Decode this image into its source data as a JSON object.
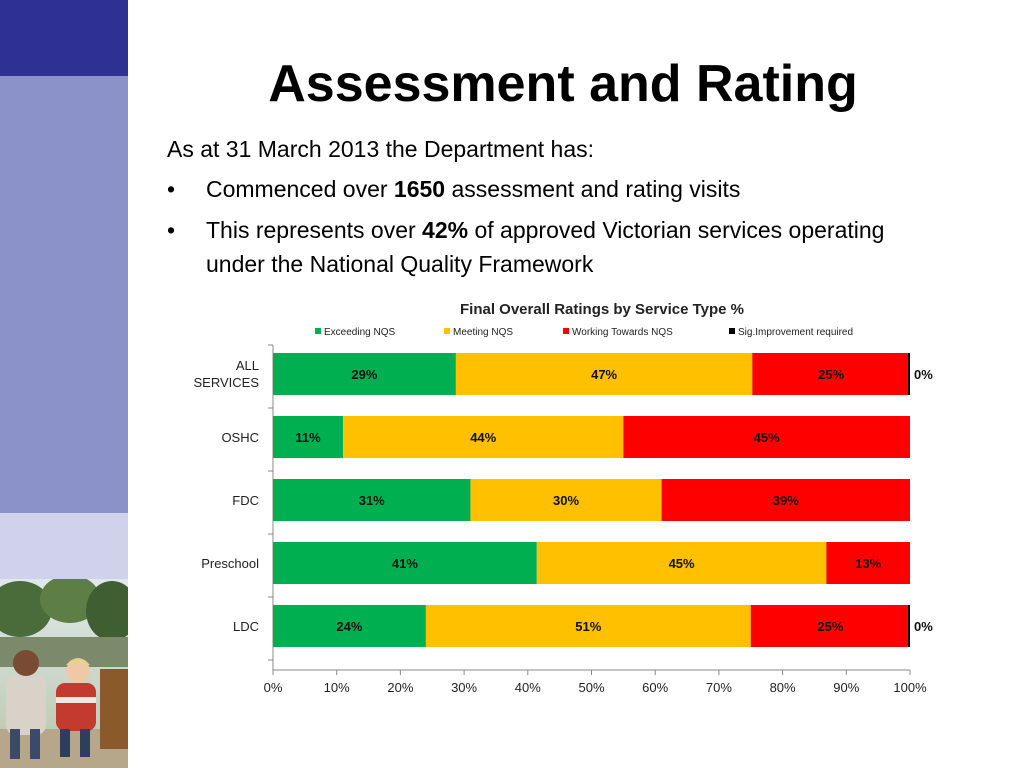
{
  "slide": {
    "title": "Assessment and Rating",
    "intro": "As at 31 March 2013 the Department has:",
    "bullets": [
      {
        "before": "Commenced over ",
        "bold": "1650",
        "after": " assessment and rating visits"
      },
      {
        "before": "This represents over ",
        "bold": "42%",
        "after": " of approved Victorian services operating under the National Quality Framework"
      }
    ],
    "bullet_symbol": "•"
  },
  "colors": {
    "sidebar_dark": "#2e3192",
    "sidebar_mid": "#8b91c9",
    "sidebar_light": "#cfd2ea"
  },
  "chart_data": {
    "type": "bar",
    "orientation": "horizontal",
    "stacked": true,
    "title": "Final Overall Ratings by Service Type %",
    "xlabel": "",
    "ylabel": "",
    "xlim": [
      0,
      100
    ],
    "x_ticks": [
      "0%",
      "10%",
      "20%",
      "30%",
      "40%",
      "50%",
      "60%",
      "70%",
      "80%",
      "90%",
      "100%"
    ],
    "legend_position": "top",
    "grid": false,
    "categories": [
      "ALL SERVICES",
      "OSHC",
      "FDC",
      "Preschool",
      "LDC"
    ],
    "series": [
      {
        "name": "Exceeding NQS",
        "color": "#00b050",
        "values": [
          29,
          11,
          31,
          41,
          24
        ],
        "labels": [
          "29%",
          "11%",
          "31%",
          "41%",
          "24%"
        ]
      },
      {
        "name": "Meeting NQS",
        "color": "#ffc000",
        "values": [
          47,
          44,
          30,
          45,
          51
        ],
        "labels": [
          "47%",
          "44%",
          "30%",
          "45%",
          "51%"
        ]
      },
      {
        "name": "Working Towards NQS",
        "color": "#ff0000",
        "values": [
          25,
          45,
          39,
          13,
          25
        ],
        "labels": [
          "25%",
          "45%",
          "39%",
          "13%",
          "25%"
        ]
      },
      {
        "name": "Sig.Improvement required",
        "color": "#000000",
        "values": [
          0,
          0,
          0,
          0,
          0
        ],
        "labels": [
          "0%",
          "",
          "",
          "",
          "0%"
        ]
      }
    ]
  }
}
